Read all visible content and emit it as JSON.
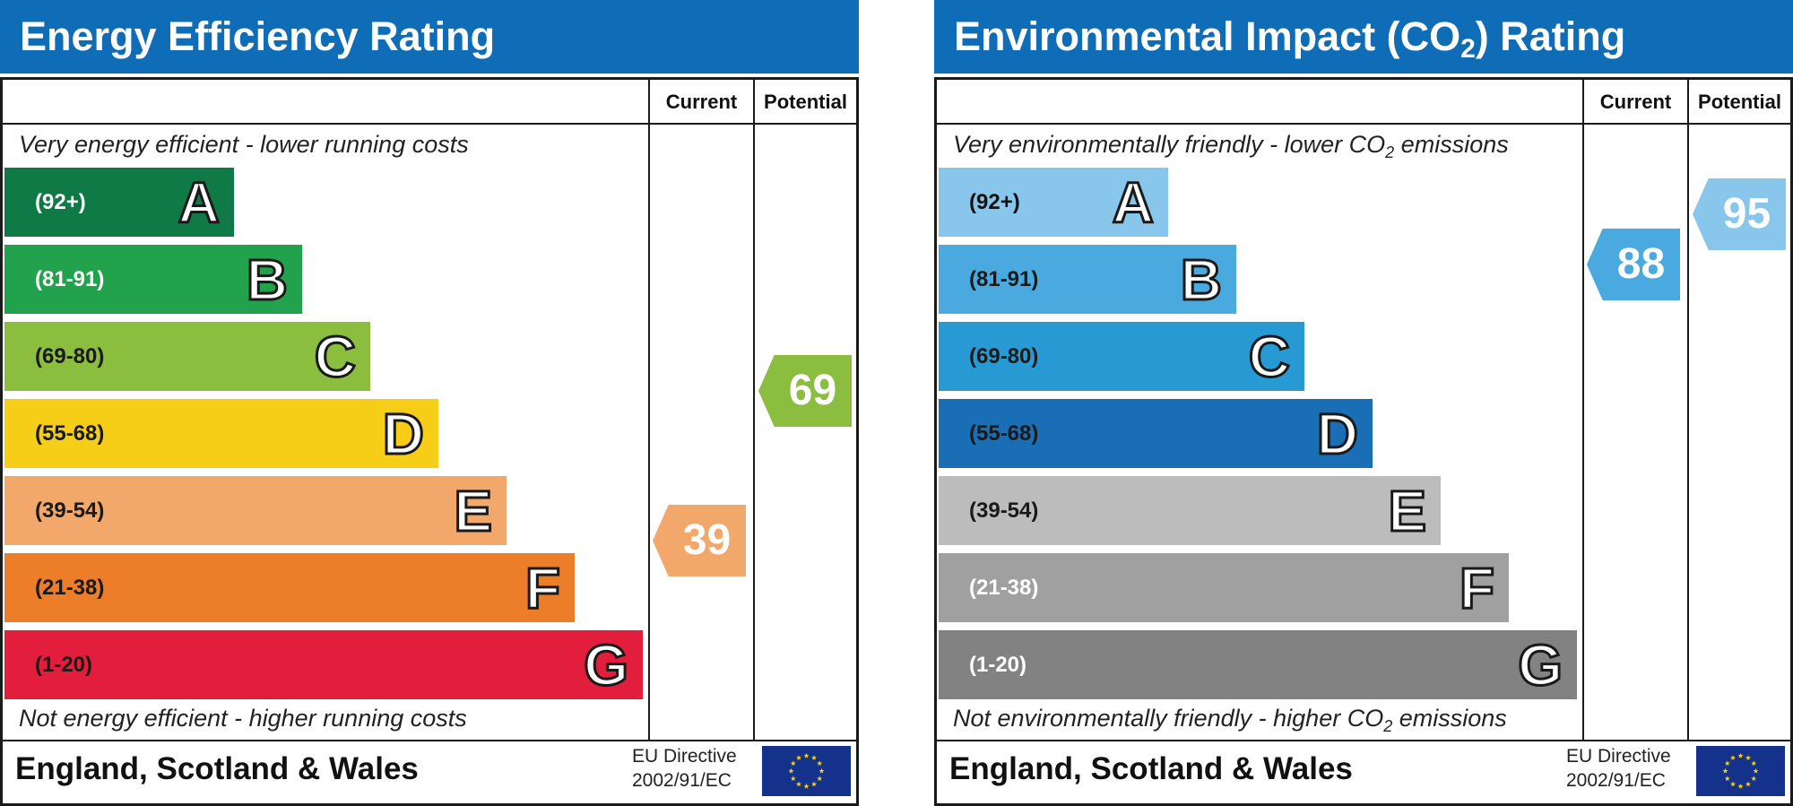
{
  "eer": {
    "title": "Energy Efficiency Rating",
    "col_current": "Current",
    "col_potential": "Potential",
    "top_note": "Very energy efficient - lower running costs",
    "bottom_note": "Not energy efficient - higher running costs",
    "footer_country": "England, Scotland & Wales",
    "footer_directive_1": "EU Directive",
    "footer_directive_2": "2002/91/EC",
    "current_value": "39",
    "potential_value": "69"
  },
  "eir": {
    "title_main": "Environmental Impact (CO",
    "title_sub": "2",
    "title_end": ") Rating",
    "col_current": "Current",
    "col_potential": "Potential",
    "top_note_main": "Very environmentally friendly - lower CO",
    "top_note_sub": "2",
    "top_note_end": " emissions",
    "bottom_note_main": "Not environmentally friendly - higher CO",
    "bottom_note_sub": "2",
    "bottom_note_end": " emissions",
    "footer_country": "England, Scotland & Wales",
    "footer_directive_1": "EU Directive",
    "footer_directive_2": "2002/91/EC",
    "current_value": "88",
    "potential_value": "95"
  },
  "chart_data": [
    {
      "type": "bar",
      "title": "Energy Efficiency Rating",
      "categories": [
        "A",
        "B",
        "C",
        "D",
        "E",
        "F",
        "G"
      ],
      "ranges": [
        "(92+)",
        "(81-91)",
        "(69-80)",
        "(55-68)",
        "(39-54)",
        "(21-38)",
        "(1-20)"
      ],
      "colors": [
        "#0f7a45",
        "#22a24c",
        "#8bbd3f",
        "#f6cd17",
        "#f2a86a",
        "#ec7e29",
        "#e31d3c"
      ],
      "range_text_colors": [
        "#ffffff",
        "#ffffff",
        "#1a1a1a",
        "#1a1a1a",
        "#1a1a1a",
        "#1a1a1a",
        "#1a1a1a"
      ],
      "current": 39,
      "potential": 69,
      "current_band": "E",
      "potential_band": "C"
    },
    {
      "type": "bar",
      "title": "Environmental Impact (CO2) Rating",
      "categories": [
        "A",
        "B",
        "C",
        "D",
        "E",
        "F",
        "G"
      ],
      "ranges": [
        "(92+)",
        "(81-91)",
        "(69-80)",
        "(55-68)",
        "(39-54)",
        "(21-38)",
        "(1-20)"
      ],
      "colors": [
        "#88c6eb",
        "#4aaadf",
        "#279ad4",
        "#1a6eb5",
        "#bcbcbc",
        "#a0a0a0",
        "#828282"
      ],
      "range_text_colors": [
        "#111111",
        "#1a1a1a",
        "#1a1a1a",
        "#1a1a1a",
        "#1a1a1a",
        "#ffffff",
        "#ffffff"
      ],
      "current": 88,
      "potential": 95,
      "current_band": "B",
      "potential_band": "A"
    }
  ]
}
